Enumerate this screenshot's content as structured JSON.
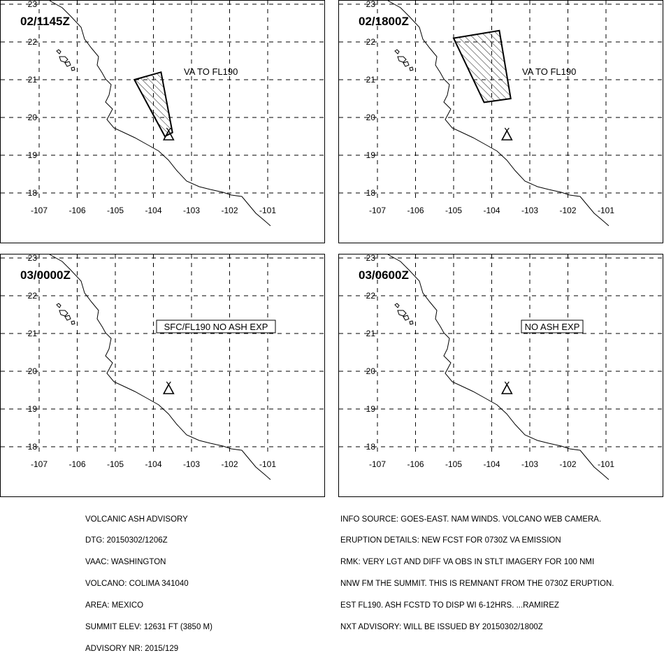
{
  "panels": [
    {
      "id": "p1",
      "time": "02/1145Z",
      "annotation": "VA TO FL190",
      "annotation_boxed": false,
      "polygon": [
        [
          -104.5,
          21.0
        ],
        [
          -103.8,
          21.2
        ],
        [
          -103.5,
          19.6
        ],
        [
          -103.7,
          19.5
        ],
        [
          -104.5,
          21.0
        ]
      ]
    },
    {
      "id": "p2",
      "time": "02/1800Z",
      "annotation": "VA TO FL190",
      "annotation_boxed": false,
      "polygon": [
        [
          -105.0,
          22.1
        ],
        [
          -103.8,
          22.3
        ],
        [
          -103.5,
          20.5
        ],
        [
          -104.2,
          20.4
        ],
        [
          -105.0,
          22.1
        ]
      ]
    },
    {
      "id": "p3",
      "time": "03/0000Z",
      "annotation": "SFC/FL190 NO ASH EXP",
      "annotation_boxed": true,
      "polygon": []
    },
    {
      "id": "p4",
      "time": "03/0600Z",
      "annotation": "NO ASH EXP",
      "annotation_boxed": true,
      "polygon": []
    }
  ],
  "map": {
    "lat_labels": [
      "23",
      "22",
      "21",
      "20",
      "19",
      "18"
    ],
    "lon_labels": [
      "-107",
      "-106",
      "-105",
      "-104",
      "-103",
      "-102",
      "-101"
    ],
    "volcano_icon": "volcano-triangle-icon",
    "volcano_location": [
      -103.6,
      19.5
    ]
  },
  "advisory_left": [
    "VOLCANIC ASH ADVISORY",
    "DTG: 20150302/1206Z",
    "VAAC: WASHINGTON",
    "VOLCANO: COLIMA 341040",
    "AREA: MEXICO",
    "SUMMIT ELEV: 12631 FT (3850 M)",
    "ADVISORY NR: 2015/129"
  ],
  "advisory_right": [
    "INFO SOURCE: GOES-EAST. NAM WINDS. VOLCANO WEB CAMERA.",
    "ERUPTION DETAILS: NEW FCST FOR 0730Z VA EMISSION",
    "RMK: VERY LGT AND DIFF VA OBS IN STLT IMAGERY FOR 100 NMI",
    "NNW FM THE SUMMIT. THIS IS REMNANT FROM THE 0730Z ERUPTION.",
    "EST FL190. ASH FCSTD TO DISP WI 6-12HRS. ...RAMIREZ",
    "NXT ADVISORY: WILL BE ISSUED BY 20150302/1800Z"
  ]
}
